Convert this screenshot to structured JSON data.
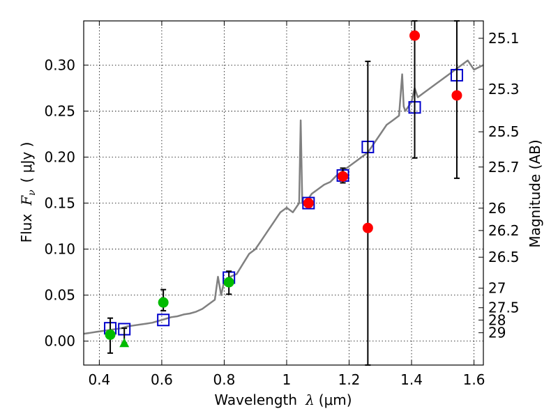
{
  "chart_data": {
    "type": "scatter",
    "xlabel_text": "Wavelength",
    "xlabel_symbol": "λ",
    "xlabel_unit": "(μm)",
    "ylabel_text": "Flux",
    "ylabel_symbol": "F",
    "ylabel_subscript": "ν",
    "ylabel_unit": "( μJy )",
    "y2label": "Magnitude (AB)",
    "xlim": [
      0.35,
      1.63
    ],
    "ylim": [
      -0.026,
      0.348
    ],
    "grid": true,
    "x_ticks": [
      {
        "value": 0.4,
        "label": "0.4"
      },
      {
        "value": 0.6,
        "label": "0.6"
      },
      {
        "value": 0.8,
        "label": "0.8"
      },
      {
        "value": 1.0,
        "label": "1"
      },
      {
        "value": 1.2,
        "label": "1.2"
      },
      {
        "value": 1.4,
        "label": "1.4"
      },
      {
        "value": 1.6,
        "label": "1.6"
      }
    ],
    "y_ticks": [
      {
        "value": 0.0,
        "label": "0.00"
      },
      {
        "value": 0.05,
        "label": "0.05"
      },
      {
        "value": 0.1,
        "label": "0.10"
      },
      {
        "value": 0.15,
        "label": "0.15"
      },
      {
        "value": 0.2,
        "label": "0.20"
      },
      {
        "value": 0.25,
        "label": "0.25"
      },
      {
        "value": 0.3,
        "label": "0.30"
      }
    ],
    "mag_ticks": [
      {
        "flux": 0.3291,
        "label": "25.1"
      },
      {
        "flux": 0.2737,
        "label": "25.3"
      },
      {
        "flux": 0.2275,
        "label": "25.5"
      },
      {
        "flux": 0.1892,
        "label": "25.7"
      },
      {
        "flux": 0.1445,
        "label": "26"
      },
      {
        "flux": 0.1202,
        "label": "26.2"
      },
      {
        "flux": 0.0912,
        "label": "26.5"
      },
      {
        "flux": 0.0575,
        "label": "27"
      },
      {
        "flux": 0.0363,
        "label": "27.5"
      },
      {
        "flux": 0.0229,
        "label": "28"
      },
      {
        "flux": 0.0091,
        "label": "29"
      }
    ],
    "colors": {
      "template": "#808080",
      "model_box": "#0000cc",
      "measured": "#ff0000",
      "ground": "#00bb00",
      "errorbar": "#000000"
    },
    "template_spectrum": {
      "x": [
        0.35,
        0.37,
        0.39,
        0.41,
        0.43,
        0.45,
        0.47,
        0.49,
        0.51,
        0.53,
        0.55,
        0.57,
        0.59,
        0.61,
        0.63,
        0.65,
        0.67,
        0.69,
        0.71,
        0.73,
        0.75,
        0.77,
        0.78,
        0.79,
        0.8,
        0.81,
        0.82,
        0.84,
        0.86,
        0.88,
        0.9,
        0.92,
        0.94,
        0.96,
        0.97,
        0.98,
        1.0,
        1.02,
        1.04,
        1.045,
        1.05,
        1.055,
        1.06,
        1.08,
        1.1,
        1.12,
        1.14,
        1.16,
        1.18,
        1.2,
        1.22,
        1.24,
        1.26,
        1.28,
        1.3,
        1.32,
        1.34,
        1.36,
        1.37,
        1.375,
        1.38,
        1.39,
        1.4,
        1.41,
        1.42,
        1.44,
        1.46,
        1.48,
        1.5,
        1.52,
        1.54,
        1.56,
        1.58,
        1.6,
        1.63
      ],
      "y": [
        0.008,
        0.009,
        0.01,
        0.011,
        0.012,
        0.013,
        0.014,
        0.016,
        0.017,
        0.018,
        0.019,
        0.02,
        0.022,
        0.024,
        0.026,
        0.027,
        0.029,
        0.03,
        0.032,
        0.035,
        0.04,
        0.045,
        0.07,
        0.05,
        0.065,
        0.068,
        0.07,
        0.073,
        0.084,
        0.095,
        0.1,
        0.11,
        0.12,
        0.13,
        0.135,
        0.14,
        0.145,
        0.14,
        0.15,
        0.24,
        0.15,
        0.148,
        0.15,
        0.16,
        0.165,
        0.17,
        0.173,
        0.18,
        0.185,
        0.19,
        0.195,
        0.2,
        0.205,
        0.215,
        0.225,
        0.235,
        0.24,
        0.245,
        0.29,
        0.255,
        0.25,
        0.255,
        0.26,
        0.275,
        0.265,
        0.27,
        0.275,
        0.28,
        0.285,
        0.29,
        0.295,
        0.3,
        0.305,
        0.295,
        0.3
      ]
    },
    "model_boxes": {
      "x": [
        0.435,
        0.48,
        0.605,
        0.815,
        1.07,
        1.18,
        1.26,
        1.41,
        1.545
      ],
      "y": [
        0.014,
        0.013,
        0.023,
        0.069,
        0.15,
        0.18,
        0.211,
        0.254,
        0.289
      ]
    },
    "measured_points": {
      "x": [
        1.07,
        1.18,
        1.26,
        1.41,
        1.545
      ],
      "y": [
        0.15,
        0.179,
        0.123,
        0.332,
        0.267
      ],
      "err_low": [
        0.147,
        0.172,
        -0.026,
        0.199,
        0.177
      ],
      "err_high": [
        0.153,
        0.188,
        0.304,
        0.348,
        0.348
      ]
    },
    "ground_points": {
      "x": [
        0.435,
        0.605,
        0.815
      ],
      "y": [
        0.007,
        0.042,
        0.064
      ],
      "err_low": [
        -0.013,
        0.033,
        0.051
      ],
      "err_high": [
        0.025,
        0.056,
        0.076
      ]
    },
    "ground_upper_limit": {
      "x": [
        0.48
      ],
      "y": [
        -0.002
      ],
      "err_low": [
        -0.002
      ],
      "err_high": [
        0.014
      ]
    }
  }
}
